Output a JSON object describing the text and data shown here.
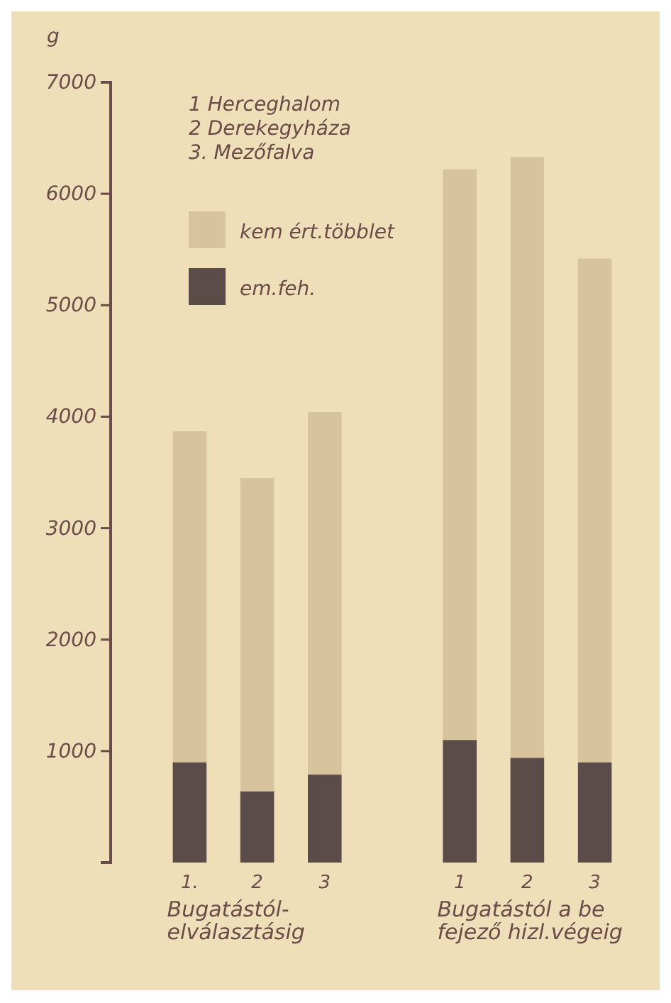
{
  "chart_data": {
    "type": "bar",
    "stacked": true,
    "ylabel": "g",
    "categories": [
      "1.",
      "2",
      "3",
      null,
      "1",
      "2",
      "3"
    ],
    "series": [
      {
        "name": "em.feh.",
        "color": "#5b4c4a",
        "values": [
          900,
          640,
          790,
          null,
          1100,
          940,
          900
        ]
      },
      {
        "name": "kem ért.többlet",
        "color": "#d8c49c",
        "values": [
          2970,
          2810,
          3250,
          null,
          5120,
          5390,
          4520
        ]
      }
    ],
    "ylim": [
      0,
      7000
    ],
    "yticks": [
      1000,
      2000,
      3000,
      4000,
      5000,
      6000,
      7000
    ],
    "legend": "top left",
    "grid": false,
    "annotations": [
      "1 Herceghalom",
      "2 Derekegyháza",
      "3. Mezőfalva",
      "Bugatástól-\nelválasztásig",
      "Bugatástól a be\nfejező hizl.végeig"
    ]
  }
}
